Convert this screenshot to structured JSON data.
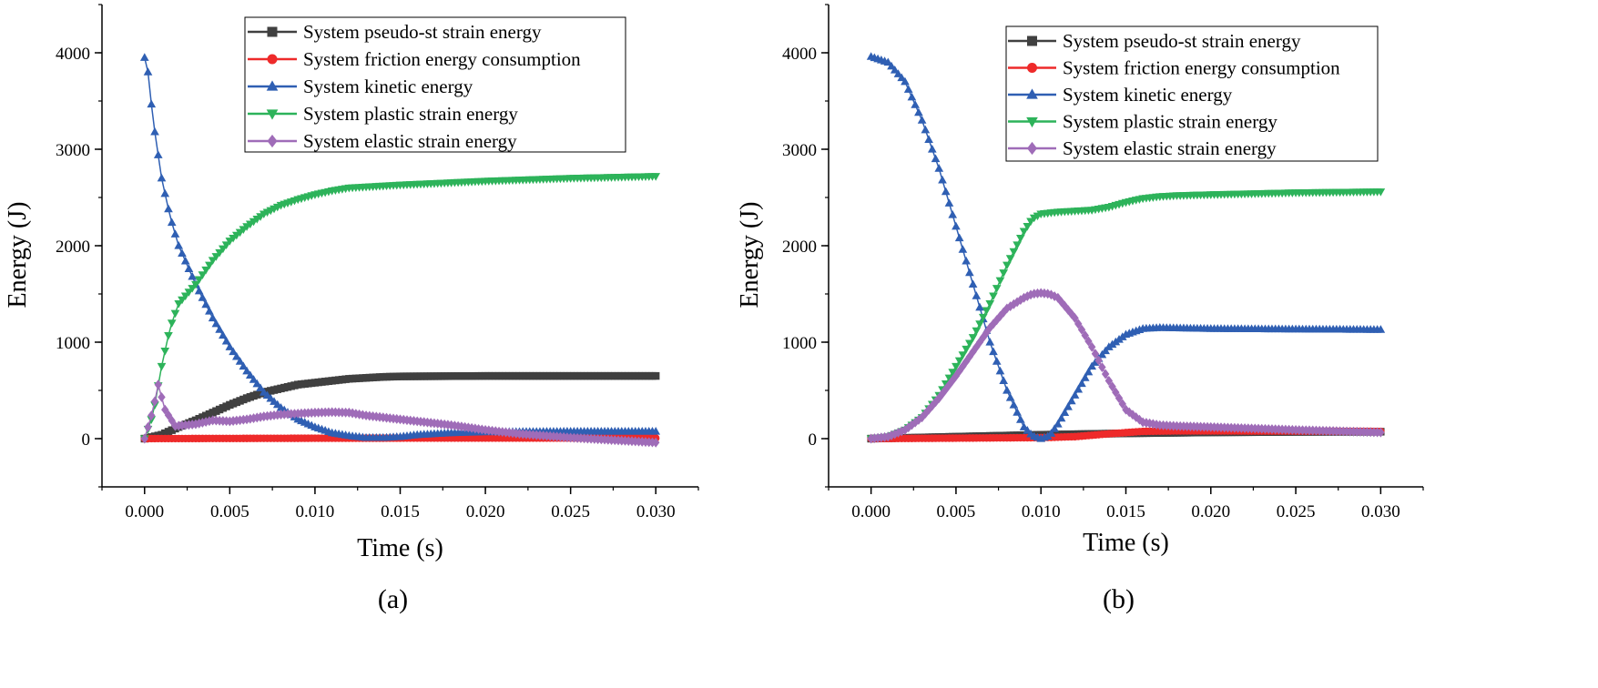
{
  "figure": {
    "panels": [
      {
        "caption": "(a)",
        "xlabel": "Time (s)",
        "ylabel": "Energy (J)"
      },
      {
        "caption": "(b)",
        "xlabel": "Time (s)",
        "ylabel": "Energy (J)"
      }
    ]
  },
  "chart_data": [
    {
      "type": "line",
      "caption": "(a)",
      "xlabel": "Time (s)",
      "ylabel": "Energy (J)",
      "xlim": [
        -0.0025,
        0.0325
      ],
      "ylim": [
        -500,
        4500
      ],
      "xticks": [
        "0.000",
        "0.005",
        "0.010",
        "0.015",
        "0.020",
        "0.025",
        "0.030"
      ],
      "yticks": [
        "0",
        "1000",
        "2000",
        "3000",
        "4000"
      ],
      "grid": false,
      "legend_position": "top-right",
      "series": [
        {
          "name": "System pseudo-st strain energy",
          "color": "#404040",
          "marker": "square",
          "x": [
            0,
            0.001,
            0.002,
            0.003,
            0.004,
            0.005,
            0.006,
            0.007,
            0.008,
            0.009,
            0.01,
            0.011,
            0.012,
            0.013,
            0.014,
            0.015,
            0.02,
            0.025,
            0.03
          ],
          "y": [
            0,
            40,
            120,
            190,
            270,
            350,
            420,
            480,
            520,
            560,
            580,
            600,
            620,
            630,
            640,
            645,
            650,
            650,
            650
          ]
        },
        {
          "name": "System friction energy consumption",
          "color": "#ee2a2a",
          "marker": "circle",
          "x": [
            0,
            0.005,
            0.01,
            0.015,
            0.02,
            0.025,
            0.03
          ],
          "y": [
            0,
            2,
            4,
            5,
            6,
            6,
            6
          ]
        },
        {
          "name": "System kinetic energy",
          "color": "#2f5fb3",
          "marker": "triangle-up",
          "x": [
            0,
            0.0002,
            0.0005,
            0.001,
            0.0015,
            0.002,
            0.003,
            0.004,
            0.005,
            0.006,
            0.007,
            0.008,
            0.009,
            0.01,
            0.011,
            0.012,
            0.013,
            0.014,
            0.015,
            0.016,
            0.018,
            0.02,
            0.025,
            0.03
          ],
          "y": [
            3950,
            3800,
            3300,
            2700,
            2300,
            2000,
            1600,
            1250,
            950,
            700,
            480,
            320,
            200,
            120,
            60,
            30,
            10,
            10,
            20,
            40,
            60,
            70,
            75,
            75
          ]
        },
        {
          "name": "System plastic strain energy",
          "color": "#2db35a",
          "marker": "triangle-down",
          "x": [
            0,
            0.0005,
            0.001,
            0.0015,
            0.002,
            0.003,
            0.004,
            0.005,
            0.006,
            0.007,
            0.008,
            0.009,
            0.01,
            0.011,
            0.012,
            0.013,
            0.014,
            0.015,
            0.02,
            0.025,
            0.03
          ],
          "y": [
            0,
            250,
            750,
            1150,
            1400,
            1600,
            1850,
            2050,
            2200,
            2330,
            2420,
            2480,
            2530,
            2570,
            2600,
            2610,
            2620,
            2630,
            2670,
            2700,
            2720
          ]
        },
        {
          "name": "System elastic strain energy",
          "color": "#9f6cb8",
          "marker": "diamond",
          "x": [
            0,
            0.0005,
            0.0008,
            0.0012,
            0.0018,
            0.003,
            0.004,
            0.005,
            0.006,
            0.007,
            0.008,
            0.009,
            0.01,
            0.011,
            0.012,
            0.013,
            0.015,
            0.018,
            0.02,
            0.022,
            0.025,
            0.03
          ],
          "y": [
            0,
            300,
            560,
            300,
            130,
            150,
            190,
            180,
            200,
            230,
            250,
            260,
            270,
            275,
            270,
            240,
            200,
            140,
            90,
            50,
            10,
            -40
          ]
        }
      ]
    },
    {
      "type": "line",
      "caption": "(b)",
      "xlabel": "Time (s)",
      "ylabel": "Energy (J)",
      "xlim": [
        -0.0025,
        0.0325
      ],
      "ylim": [
        -500,
        4500
      ],
      "xticks": [
        "0.000",
        "0.005",
        "0.010",
        "0.015",
        "0.020",
        "0.025",
        "0.030"
      ],
      "yticks": [
        "0",
        "1000",
        "2000",
        "3000",
        "4000"
      ],
      "grid": false,
      "legend_position": "top-right",
      "series": [
        {
          "name": "System pseudo-st strain energy",
          "color": "#404040",
          "marker": "square",
          "x": [
            0,
            0.005,
            0.01,
            0.015,
            0.02,
            0.025,
            0.03
          ],
          "y": [
            0,
            20,
            40,
            55,
            65,
            70,
            72
          ]
        },
        {
          "name": "System friction energy consumption",
          "color": "#ee2a2a",
          "marker": "circle",
          "x": [
            0,
            0.005,
            0.01,
            0.012,
            0.014,
            0.016,
            0.018,
            0.02,
            0.025,
            0.03
          ],
          "y": [
            0,
            5,
            10,
            20,
            50,
            75,
            80,
            80,
            78,
            75
          ]
        },
        {
          "name": "System kinetic energy",
          "color": "#2f5fb3",
          "marker": "triangle-up",
          "x": [
            0,
            0.001,
            0.002,
            0.003,
            0.004,
            0.005,
            0.006,
            0.007,
            0.008,
            0.009,
            0.0095,
            0.01,
            0.0105,
            0.011,
            0.012,
            0.013,
            0.014,
            0.015,
            0.016,
            0.017,
            0.02,
            0.025,
            0.03
          ],
          "y": [
            3960,
            3900,
            3700,
            3300,
            2800,
            2200,
            1600,
            1000,
            500,
            120,
            30,
            0,
            30,
            150,
            450,
            750,
            950,
            1080,
            1140,
            1150,
            1140,
            1135,
            1130
          ]
        },
        {
          "name": "System plastic strain energy",
          "color": "#2db35a",
          "marker": "triangle-down",
          "x": [
            0,
            0.001,
            0.002,
            0.003,
            0.004,
            0.005,
            0.006,
            0.007,
            0.008,
            0.009,
            0.0095,
            0.01,
            0.011,
            0.012,
            0.013,
            0.014,
            0.015,
            0.016,
            0.017,
            0.018,
            0.02,
            0.025,
            0.03
          ],
          "y": [
            0,
            20,
            90,
            220,
            450,
            750,
            1050,
            1400,
            1800,
            2150,
            2280,
            2330,
            2350,
            2360,
            2370,
            2400,
            2450,
            2490,
            2510,
            2520,
            2530,
            2550,
            2560
          ]
        },
        {
          "name": "System elastic strain energy",
          "color": "#9f6cb8",
          "marker": "diamond",
          "x": [
            0,
            0.001,
            0.002,
            0.003,
            0.004,
            0.005,
            0.006,
            0.007,
            0.008,
            0.009,
            0.0095,
            0.01,
            0.0105,
            0.011,
            0.012,
            0.013,
            0.014,
            0.015,
            0.016,
            0.017,
            0.018,
            0.02,
            0.025,
            0.03
          ],
          "y": [
            0,
            20,
            90,
            220,
            420,
            650,
            900,
            1150,
            1350,
            1460,
            1500,
            1510,
            1500,
            1460,
            1250,
            950,
            600,
            300,
            170,
            140,
            130,
            120,
            90,
            65
          ]
        }
      ]
    }
  ]
}
